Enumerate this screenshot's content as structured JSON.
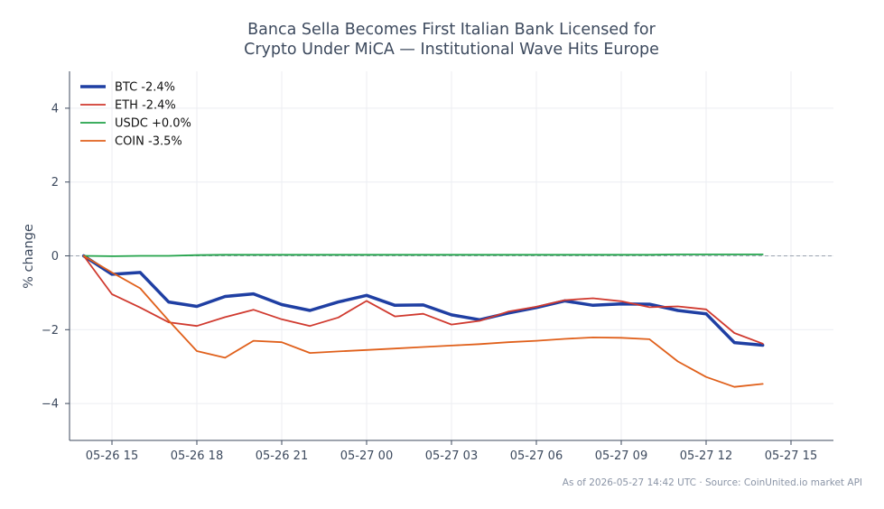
{
  "chart_data": {
    "type": "line",
    "title_lines": [
      "Banca Sella Becomes First Italian Bank Licensed for",
      "Crypto Under MiCA — Institutional Wave Hits Europe"
    ],
    "xlabel": "",
    "ylabel": "% change",
    "xlim_hours": [
      -1.5,
      25.5
    ],
    "ylim": [
      -5,
      5
    ],
    "x_ticks": [
      {
        "label": "05-26 15",
        "t": 0
      },
      {
        "label": "05-26 18",
        "t": 3
      },
      {
        "label": "05-26 21",
        "t": 6
      },
      {
        "label": "05-27 00",
        "t": 9
      },
      {
        "label": "05-27 03",
        "t": 12
      },
      {
        "label": "05-27 06",
        "t": 15
      },
      {
        "label": "05-27 09",
        "t": 18
      },
      {
        "label": "05-27 12",
        "t": 21
      },
      {
        "label": "05-27 15",
        "t": 24
      }
    ],
    "y_ticks": [
      {
        "label": "4",
        "v": 4
      },
      {
        "label": "2",
        "v": 2
      },
      {
        "label": "0",
        "v": 0
      },
      {
        "label": "−2",
        "v": -2
      },
      {
        "label": "−4",
        "v": -4
      }
    ],
    "grid": true,
    "zero_line": true,
    "legend_position": "top-left",
    "x": [
      "05-26 14:00",
      "05-26 15:00",
      "05-26 16:00",
      "05-26 17:00",
      "05-26 18:00",
      "05-26 19:00",
      "05-26 20:00",
      "05-26 21:00",
      "05-26 22:00",
      "05-26 23:00",
      "05-27 00:00",
      "05-27 01:00",
      "05-27 02:00",
      "05-27 03:00",
      "05-27 04:00",
      "05-27 05:00",
      "05-27 06:00",
      "05-27 07:00",
      "05-27 08:00",
      "05-27 09:00",
      "05-27 10:00",
      "05-27 11:00",
      "05-27 12:00",
      "05-27 13:00",
      "05-27 14:00"
    ],
    "series": [
      {
        "name": "BTC -2.4%",
        "color": "#1f3fa3",
        "width": 3.5,
        "values": [
          0,
          -0.5,
          -0.45,
          -1.25,
          -1.37,
          -1.1,
          -1.03,
          -1.32,
          -1.48,
          -1.25,
          -1.07,
          -1.34,
          -1.33,
          -1.6,
          -1.73,
          -1.55,
          -1.4,
          -1.22,
          -1.34,
          -1.3,
          -1.31,
          -1.48,
          -1.57,
          -2.35,
          -2.42
        ]
      },
      {
        "name": "ETH -2.4%",
        "color": "#d03a2f",
        "width": 1.8,
        "values": [
          0,
          -1.04,
          -1.4,
          -1.8,
          -1.9,
          -1.66,
          -1.46,
          -1.72,
          -1.9,
          -1.67,
          -1.22,
          -1.64,
          -1.57,
          -1.86,
          -1.76,
          -1.51,
          -1.38,
          -1.2,
          -1.15,
          -1.23,
          -1.39,
          -1.37,
          -1.45,
          -2.09,
          -2.38
        ]
      },
      {
        "name": "USDC +0.0%",
        "color": "#22a34a",
        "width": 1.8,
        "values": [
          0,
          -0.01,
          0,
          0,
          0.02,
          0.03,
          0.03,
          0.03,
          0.03,
          0.03,
          0.03,
          0.03,
          0.03,
          0.03,
          0.03,
          0.03,
          0.03,
          0.03,
          0.03,
          0.03,
          0.03,
          0.04,
          0.04,
          0.04,
          0.04
        ]
      },
      {
        "name": "COIN -3.5%",
        "color": "#e0601b",
        "width": 1.8,
        "values": [
          0,
          -0.45,
          -0.88,
          -1.75,
          -2.58,
          -2.76,
          -2.3,
          -2.34,
          -2.63,
          -2.59,
          -2.55,
          -2.51,
          -2.47,
          -2.43,
          -2.39,
          -2.34,
          -2.3,
          -2.25,
          -2.21,
          -2.22,
          -2.26,
          -2.86,
          -3.28,
          -3.55,
          -3.47
        ]
      }
    ]
  },
  "footer": "As of 2026-05-27 14:42 UTC · Source: CoinUnited.io market API"
}
